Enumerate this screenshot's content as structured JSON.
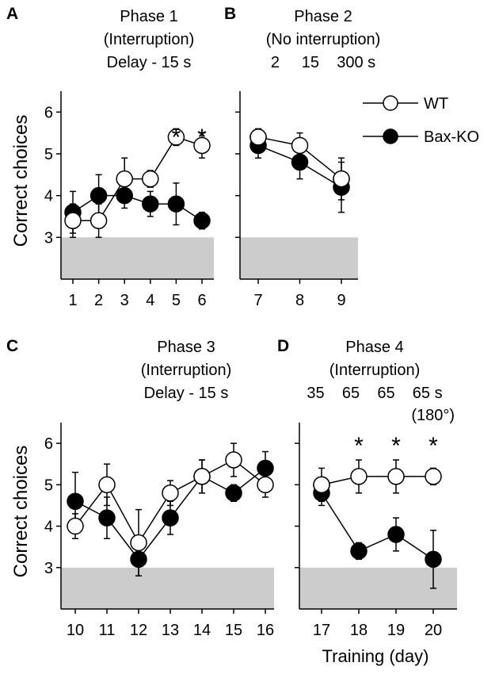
{
  "figure": {
    "ylabel": "Correct choices",
    "xlabel": "Training (day)",
    "chance_level": 3,
    "shade_color": "#cccccc",
    "legend": [
      {
        "label": "WT",
        "marker": "open-circle"
      },
      {
        "label": "Bax-KO",
        "marker": "filled-circle"
      }
    ]
  },
  "chart_data": [
    {
      "type": "line",
      "panel": "A",
      "header": [
        "Phase 1",
        "(Interruption)",
        "Delay - 15 s"
      ],
      "categories": [
        "1",
        "2",
        "3",
        "4",
        "5",
        "6"
      ],
      "ylim": [
        2,
        6.5
      ],
      "yticks": [
        "3",
        "4",
        "5",
        "6"
      ],
      "significant": [
        false,
        false,
        false,
        false,
        true,
        true
      ],
      "significance_marker": "*",
      "series": [
        {
          "name": "WT",
          "values": [
            3.4,
            3.4,
            4.4,
            4.4,
            5.4,
            5.2
          ],
          "errors": [
            0.4,
            0.4,
            0.5,
            0.2,
            0.2,
            0.3
          ]
        },
        {
          "name": "Bax-KO",
          "values": [
            3.6,
            4.0,
            4.0,
            3.8,
            3.8,
            3.4
          ],
          "errors": [
            0.5,
            0.5,
            0.3,
            0.3,
            0.5,
            0.2
          ]
        }
      ]
    },
    {
      "type": "line",
      "panel": "B",
      "header": [
        "Phase 2",
        "(No interruption)",
        "2     15    300 s"
      ],
      "categories": [
        "7",
        "8",
        "9"
      ],
      "ylim": [
        2,
        6.5
      ],
      "yticks": [],
      "significant": [
        false,
        false,
        false
      ],
      "significance_marker": "*",
      "series": [
        {
          "name": "WT",
          "values": [
            5.4,
            5.2,
            4.4
          ],
          "errors": [
            0.2,
            0.3,
            0.5
          ]
        },
        {
          "name": "Bax-KO",
          "values": [
            5.2,
            4.8,
            4.2
          ],
          "errors": [
            0.3,
            0.4,
            0.6
          ]
        }
      ]
    },
    {
      "type": "line",
      "panel": "C",
      "header": [
        "Phase 3",
        "(Interruption)",
        "Delay - 15 s"
      ],
      "categories": [
        "10",
        "11",
        "12",
        "13",
        "14",
        "15",
        "16"
      ],
      "ylim": [
        2,
        6.5
      ],
      "yticks": [
        "3",
        "4",
        "5",
        "6"
      ],
      "significant": [
        false,
        false,
        false,
        false,
        false,
        false,
        false
      ],
      "significance_marker": "*",
      "series": [
        {
          "name": "WT",
          "values": [
            4.0,
            5.0,
            3.6,
            4.8,
            5.2,
            5.6,
            5.0
          ],
          "errors": [
            0.3,
            0.5,
            0.8,
            0.3,
            0.4,
            0.4,
            0.3
          ]
        },
        {
          "name": "Bax-KO",
          "values": [
            4.6,
            4.2,
            3.2,
            4.2,
            5.2,
            4.8,
            5.4
          ],
          "errors": [
            0.7,
            0.5,
            0.4,
            0.4,
            0.4,
            0.2,
            0.4
          ]
        }
      ]
    },
    {
      "type": "line",
      "panel": "D",
      "header": [
        "Phase 4",
        "(Interruption)",
        "35    65    65    65 s",
        "(180°)"
      ],
      "categories": [
        "17",
        "18",
        "19",
        "20"
      ],
      "ylim": [
        2,
        6.5
      ],
      "yticks": [],
      "significant": [
        false,
        true,
        true,
        true
      ],
      "significance_marker": "*",
      "series": [
        {
          "name": "WT",
          "values": [
            5.0,
            5.2,
            5.2,
            5.2
          ],
          "errors": [
            0.4,
            0.4,
            0.4,
            0.2
          ]
        },
        {
          "name": "Bax-KO",
          "values": [
            4.8,
            3.4,
            3.8,
            3.2
          ],
          "errors": [
            0.3,
            0.2,
            0.4,
            0.7
          ]
        }
      ]
    }
  ]
}
